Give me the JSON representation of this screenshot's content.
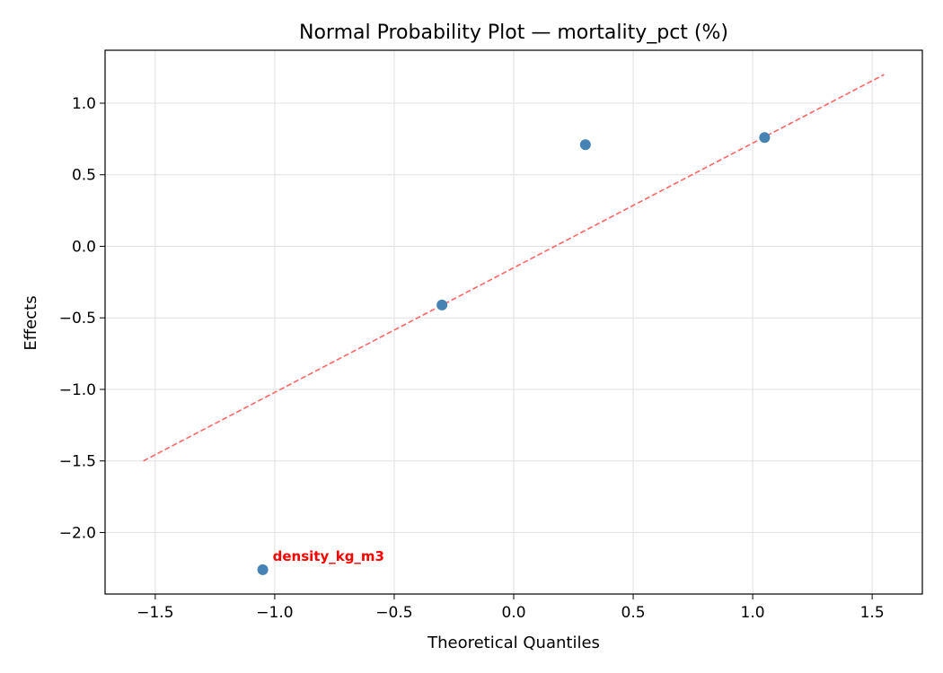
{
  "chart_data": {
    "type": "scatter",
    "title": "Normal Probability Plot — mortality_pct (%)",
    "xlabel": "Theoretical Quantiles",
    "ylabel": "Effects",
    "xlim": [
      -1.71,
      1.71
    ],
    "ylim": [
      -2.43,
      1.37
    ],
    "xticks": [
      -1.5,
      -1.0,
      -0.5,
      0.0,
      0.5,
      1.0,
      1.5
    ],
    "yticks": [
      -2.0,
      -1.5,
      -1.0,
      -0.5,
      0.0,
      0.5,
      1.0
    ],
    "grid": true,
    "points": [
      {
        "x": -1.05,
        "y": -2.26
      },
      {
        "x": -0.3,
        "y": -0.41
      },
      {
        "x": 0.3,
        "y": 0.71
      },
      {
        "x": 1.05,
        "y": 0.76
      }
    ],
    "point_color": "#4682b4",
    "reference_line": {
      "x": [
        -1.55,
        1.55
      ],
      "y": [
        -1.5,
        1.2
      ],
      "color": "#ff6666",
      "style": "dashed"
    },
    "annotations": [
      {
        "text": "density_kg_m3",
        "x": -1.05,
        "y": -2.26,
        "color": "#ff0000",
        "bold": true
      }
    ]
  }
}
